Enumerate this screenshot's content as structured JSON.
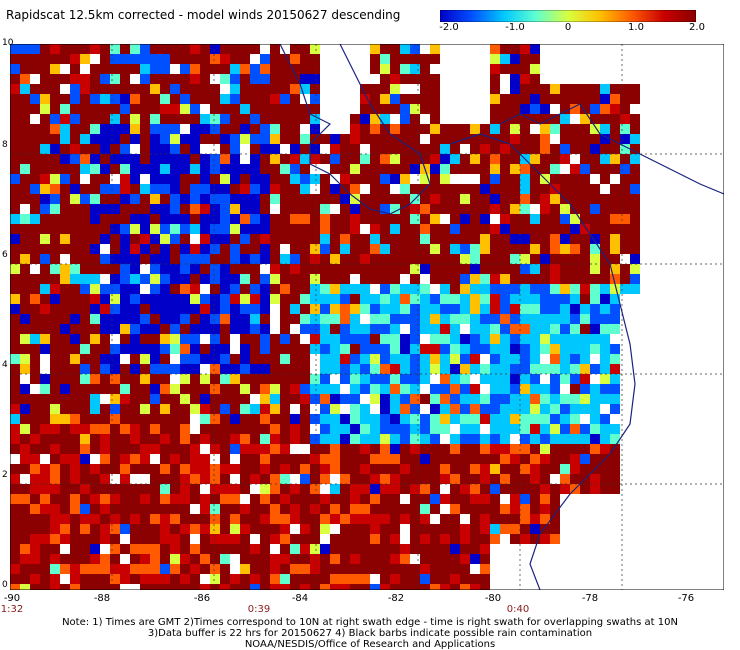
{
  "title": "Rapidscat 12.5km corrected - model winds 20150627 descending",
  "colorbar": {
    "labels": [
      "-2.0",
      "-1.0",
      "0",
      "1.0",
      "2.0"
    ],
    "colors": [
      "#0000c8",
      "#0050ff",
      "#00c8ff",
      "#60ffd0",
      "#d8ff40",
      "#ffc000",
      "#ff5a00",
      "#c80000",
      "#8b0000"
    ]
  },
  "map": {
    "x_ticks": [
      "-90",
      "-88",
      "-86",
      "-84",
      "-82",
      "-80",
      "-78",
      "-76"
    ],
    "y_ticks": [
      "0",
      "2",
      "4",
      "6",
      "8",
      "10"
    ],
    "lon_range": [
      -90,
      -76
    ],
    "lat_range": [
      0,
      10
    ],
    "land_color": "#ffffff",
    "coast_color": "#1a237e"
  },
  "times": [
    "1:32",
    "0:39",
    "0:40"
  ],
  "notes": [
    "Note: 1) Times are GMT 2)Times correspond to 10N at right swath edge - time is right swath for overlapping swaths at 10N",
    "3)Data buffer is 22 hrs for 20150627 4) Black barbs indicate possible rain contamination",
    "NOAA/NESDIS/Office of Research and Applications"
  ]
}
